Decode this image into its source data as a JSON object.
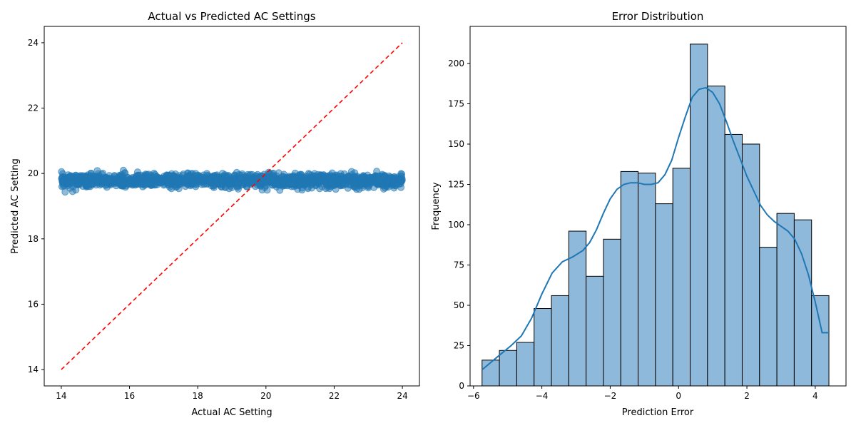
{
  "colors": {
    "scatter": "#1f77b4",
    "ideal_line": "#ff0000",
    "hist_fill": "#8fb9da",
    "hist_edge": "#000000",
    "kde": "#1f77b4"
  },
  "chart_data": [
    {
      "type": "scatter",
      "title": "Actual vs Predicted AC Settings",
      "xlabel": "Actual AC Setting",
      "ylabel": "Predicted AC Setting",
      "xlim": [
        13.5,
        24.5
      ],
      "ylim": [
        13.5,
        24.5
      ],
      "xticks": [
        14,
        16,
        18,
        20,
        22,
        24
      ],
      "yticks": [
        14,
        16,
        18,
        20,
        22,
        24
      ],
      "grid": false,
      "point_count": 1600,
      "x_range": [
        14,
        24
      ],
      "y_center": 19.78,
      "y_spread": 0.1,
      "ideal_line": {
        "x": [
          14,
          24
        ],
        "y": [
          14,
          24
        ],
        "style": "dashed"
      }
    },
    {
      "type": "bar",
      "title": "Error Distribution",
      "xlabel": "Prediction Error",
      "ylabel": "Frequency",
      "xlim": [
        -6.1,
        4.9
      ],
      "ylim": [
        0,
        223
      ],
      "xticks": [
        -6,
        -4,
        -2,
        0,
        2,
        4
      ],
      "yticks": [
        0,
        25,
        50,
        75,
        100,
        125,
        150,
        175,
        200
      ],
      "grid": false,
      "bin_start": -5.75,
      "bin_width": 0.5075,
      "values": [
        16,
        22,
        27,
        48,
        56,
        96,
        68,
        91,
        133,
        132,
        113,
        135,
        212,
        186,
        156,
        150,
        86,
        107,
        103,
        56
      ],
      "kde": {
        "x": [
          -5.75,
          -5.3,
          -4.9,
          -4.6,
          -4.3,
          -4.0,
          -3.7,
          -3.4,
          -3.1,
          -2.8,
          -2.6,
          -2.4,
          -2.2,
          -2.0,
          -1.8,
          -1.6,
          -1.4,
          -1.2,
          -1.0,
          -0.8,
          -0.6,
          -0.4,
          -0.2,
          0.0,
          0.2,
          0.4,
          0.6,
          0.8,
          1.0,
          1.2,
          1.4,
          1.6,
          1.8,
          2.0,
          2.2,
          2.4,
          2.6,
          2.8,
          3.0,
          3.2,
          3.4,
          3.6,
          3.8,
          4.0,
          4.2,
          4.4
        ],
        "y": [
          10,
          18,
          25,
          31,
          42,
          57,
          70,
          77,
          80,
          84,
          89,
          97,
          107,
          116,
          122,
          125,
          126,
          126,
          125,
          125,
          126,
          131,
          140,
          154,
          167,
          179,
          184,
          185,
          182,
          175,
          164,
          152,
          141,
          130,
          121,
          112,
          106,
          102,
          99,
          96,
          91,
          82,
          69,
          52,
          33,
          33
        ]
      }
    }
  ]
}
